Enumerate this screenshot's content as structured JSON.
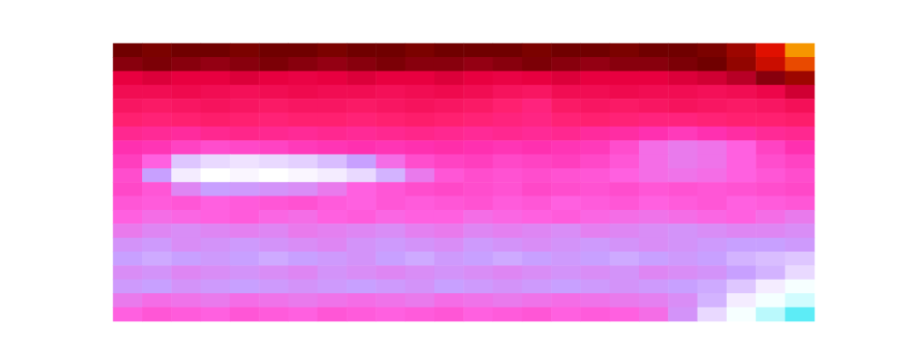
{
  "chart_data": {
    "type": "heatmap",
    "tick_labels": false,
    "categories": [
      null,
      null,
      null,
      null,
      null,
      null,
      null,
      null,
      null,
      null,
      null,
      null,
      null,
      null,
      null,
      null,
      null,
      null,
      null,
      null,
      null,
      null,
      null,
      null
    ],
    "row_categories": [
      null,
      null,
      null,
      null,
      null,
      null,
      null,
      null,
      null,
      null,
      null,
      null,
      null,
      null,
      null,
      null,
      null,
      null,
      null,
      null
    ],
    "color_range": [
      0,
      100
    ],
    "cells": [
      [
        80,
        81,
        80,
        80,
        81,
        80,
        80,
        81,
        80,
        80,
        81,
        80,
        80,
        80,
        81,
        80,
        80,
        81,
        80,
        80,
        81,
        84,
        90,
        97
      ],
      [
        78,
        79,
        78,
        77,
        78,
        79,
        78,
        77,
        78,
        79,
        78,
        78,
        77,
        78,
        79,
        78,
        77,
        78,
        78,
        79,
        80,
        83,
        88,
        93
      ],
      [
        70,
        71,
        70,
        70,
        71,
        70,
        69,
        70,
        71,
        70,
        70,
        71,
        70,
        69,
        70,
        71,
        70,
        70,
        70,
        71,
        72,
        74,
        78,
        84
      ],
      [
        66,
        66,
        67,
        66,
        65,
        66,
        67,
        66,
        66,
        65,
        66,
        67,
        66,
        64,
        63,
        66,
        66,
        67,
        66,
        66,
        65,
        66,
        68,
        72
      ],
      [
        63,
        62,
        63,
        64,
        63,
        62,
        63,
        63,
        62,
        63,
        64,
        63,
        62,
        60,
        58,
        62,
        63,
        62,
        63,
        64,
        63,
        62,
        63,
        65
      ],
      [
        60,
        59,
        60,
        61,
        60,
        59,
        60,
        60,
        59,
        60,
        61,
        60,
        59,
        58,
        57,
        59,
        60,
        59,
        58,
        58,
        59,
        60,
        60,
        61
      ],
      [
        55,
        54,
        53,
        55,
        56,
        55,
        54,
        55,
        54,
        55,
        56,
        55,
        54,
        55,
        54,
        55,
        53,
        52,
        50,
        48,
        50,
        52,
        54,
        55
      ],
      [
        50,
        49,
        46,
        44,
        45,
        46,
        48,
        49,
        50,
        49,
        50,
        51,
        50,
        49,
        50,
        49,
        48,
        44,
        38,
        36,
        37,
        40,
        46,
        50
      ],
      [
        47,
        40,
        26,
        24,
        23,
        24,
        25,
        27,
        30,
        38,
        44,
        46,
        47,
        45,
        46,
        47,
        45,
        42,
        38,
        36,
        37,
        40,
        44,
        46
      ],
      [
        44,
        30,
        22,
        20,
        21,
        20,
        21,
        22,
        24,
        28,
        36,
        42,
        44,
        43,
        44,
        43,
        42,
        40,
        38,
        37,
        38,
        40,
        42,
        44
      ],
      [
        45,
        42,
        34,
        30,
        31,
        32,
        33,
        36,
        40,
        42,
        44,
        45,
        44,
        43,
        45,
        44,
        43,
        44,
        42,
        43,
        42,
        43,
        44,
        45
      ],
      [
        42,
        41,
        42,
        40,
        41,
        42,
        43,
        41,
        40,
        42,
        41,
        42,
        43,
        41,
        42,
        40,
        41,
        42,
        40,
        41,
        42,
        40,
        41,
        42
      ],
      [
        40,
        38,
        39,
        40,
        41,
        39,
        38,
        40,
        41,
        39,
        40,
        40,
        38,
        39,
        40,
        41,
        39,
        38,
        37,
        38,
        39,
        40,
        38,
        36
      ],
      [
        36,
        34,
        33,
        34,
        35,
        34,
        36,
        35,
        34,
        33,
        35,
        36,
        34,
        35,
        34,
        33,
        35,
        34,
        33,
        32,
        33,
        34,
        34,
        33
      ],
      [
        32,
        31,
        33,
        32,
        31,
        32,
        33,
        34,
        32,
        31,
        32,
        33,
        31,
        32,
        33,
        32,
        31,
        32,
        33,
        32,
        31,
        30,
        30,
        31
      ],
      [
        30,
        29,
        30,
        31,
        30,
        29,
        30,
        31,
        32,
        30,
        29,
        31,
        30,
        29,
        30,
        31,
        30,
        29,
        30,
        31,
        30,
        28,
        27,
        26
      ],
      [
        33,
        32,
        34,
        33,
        32,
        33,
        34,
        32,
        33,
        34,
        33,
        32,
        33,
        34,
        33,
        32,
        33,
        32,
        34,
        33,
        32,
        30,
        28,
        24
      ],
      [
        31,
        30,
        32,
        31,
        30,
        31,
        32,
        31,
        30,
        31,
        32,
        30,
        31,
        32,
        31,
        30,
        31,
        32,
        31,
        30,
        29,
        26,
        22,
        16
      ],
      [
        36,
        38,
        37,
        36,
        38,
        37,
        36,
        37,
        38,
        37,
        36,
        38,
        37,
        36,
        37,
        38,
        37,
        36,
        35,
        33,
        28,
        22,
        15,
        9
      ],
      [
        40,
        42,
        41,
        40,
        42,
        41,
        40,
        42,
        41,
        40,
        41,
        42,
        40,
        41,
        42,
        40,
        41,
        40,
        38,
        32,
        24,
        16,
        8,
        4
      ]
    ]
  }
}
